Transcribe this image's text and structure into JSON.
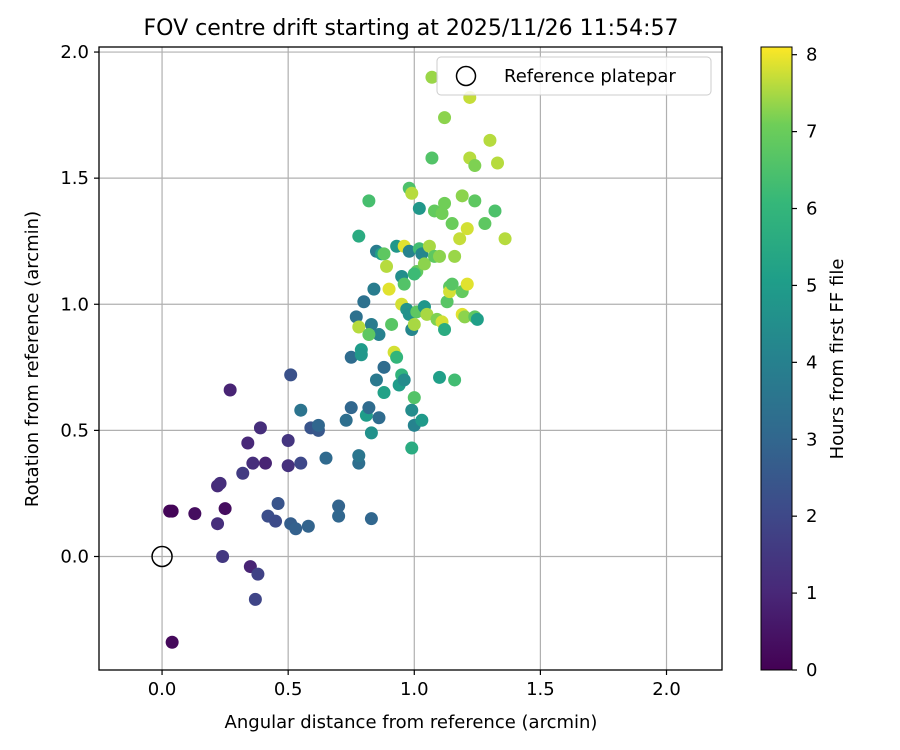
{
  "chart_data": {
    "type": "scatter",
    "title": "FOV centre drift starting at 2025/11/26 11:54:57",
    "xlabel": "Angular distance from reference (arcmin)",
    "ylabel": "Rotation from reference (arcmin)",
    "xlim": [
      -0.25,
      2.22
    ],
    "ylim": [
      -0.45,
      2.02
    ],
    "xticks": [
      0.0,
      0.5,
      1.0,
      1.5,
      2.0
    ],
    "xtick_labels": [
      "0.0",
      "0.5",
      "1.0",
      "1.5",
      "2.0"
    ],
    "yticks": [
      0.0,
      0.5,
      1.0,
      1.5,
      2.0
    ],
    "ytick_labels": [
      "0.0",
      "0.5",
      "1.0",
      "1.5",
      "2.0"
    ],
    "grid": true,
    "legend": {
      "position": "top-right",
      "entries": [
        "Reference platepar"
      ]
    },
    "reference_point": {
      "x": 0.0,
      "y": 0.0,
      "label": "Reference platepar"
    },
    "colorbar": {
      "label": "Hours from first FF file",
      "colormap": "viridis",
      "range": [
        0,
        8.1
      ],
      "ticks": [
        0,
        1,
        2,
        3,
        4,
        5,
        6,
        7,
        8
      ],
      "tick_labels": [
        "0",
        "1",
        "2",
        "3",
        "4",
        "5",
        "6",
        "7",
        "8"
      ]
    },
    "points": [
      {
        "x": 0.04,
        "y": 0.18,
        "c": 0.1
      },
      {
        "x": 0.03,
        "y": 0.18,
        "c": 0.1
      },
      {
        "x": 0.04,
        "y": -0.34,
        "c": 0.2
      },
      {
        "x": 0.13,
        "y": 0.17,
        "c": 0.3
      },
      {
        "x": 0.25,
        "y": 0.19,
        "c": 0.3
      },
      {
        "x": 0.22,
        "y": 0.13,
        "c": 1.2
      },
      {
        "x": 0.22,
        "y": 0.28,
        "c": 1.1
      },
      {
        "x": 0.23,
        "y": 0.29,
        "c": 1.2
      },
      {
        "x": 0.24,
        "y": 0.0,
        "c": 1.5
      },
      {
        "x": 0.27,
        "y": 0.66,
        "c": 0.9
      },
      {
        "x": 0.32,
        "y": 0.33,
        "c": 1.6
      },
      {
        "x": 0.34,
        "y": 0.45,
        "c": 1.0
      },
      {
        "x": 0.35,
        "y": -0.04,
        "c": 0.9
      },
      {
        "x": 0.36,
        "y": 0.37,
        "c": 1.2
      },
      {
        "x": 0.37,
        "y": -0.17,
        "c": 1.9
      },
      {
        "x": 0.38,
        "y": -0.07,
        "c": 1.8
      },
      {
        "x": 0.39,
        "y": 0.51,
        "c": 1.2
      },
      {
        "x": 0.41,
        "y": 0.37,
        "c": 0.9
      },
      {
        "x": 0.42,
        "y": 0.16,
        "c": 2.2
      },
      {
        "x": 0.45,
        "y": 0.14,
        "c": 2.1
      },
      {
        "x": 0.46,
        "y": 0.21,
        "c": 2.4
      },
      {
        "x": 0.5,
        "y": 0.46,
        "c": 1.4
      },
      {
        "x": 0.5,
        "y": 0.36,
        "c": 1.3
      },
      {
        "x": 0.51,
        "y": 0.13,
        "c": 2.7
      },
      {
        "x": 0.51,
        "y": 0.72,
        "c": 2.3
      },
      {
        "x": 0.53,
        "y": 0.11,
        "c": 2.8
      },
      {
        "x": 0.55,
        "y": 0.58,
        "c": 3.5
      },
      {
        "x": 0.55,
        "y": 0.37,
        "c": 2.0
      },
      {
        "x": 0.58,
        "y": 0.12,
        "c": 2.9
      },
      {
        "x": 0.59,
        "y": 0.51,
        "c": 2.4
      },
      {
        "x": 0.62,
        "y": 0.5,
        "c": 2.5
      },
      {
        "x": 0.62,
        "y": 0.52,
        "c": 3.0
      },
      {
        "x": 0.65,
        "y": 0.39,
        "c": 3.1
      },
      {
        "x": 0.7,
        "y": 0.2,
        "c": 2.9
      },
      {
        "x": 0.7,
        "y": 0.16,
        "c": 3.0
      },
      {
        "x": 0.73,
        "y": 0.54,
        "c": 3.3
      },
      {
        "x": 0.75,
        "y": 0.59,
        "c": 3.0
      },
      {
        "x": 0.75,
        "y": 0.79,
        "c": 3.2
      },
      {
        "x": 0.77,
        "y": 0.95,
        "c": 3.4
      },
      {
        "x": 0.78,
        "y": 0.37,
        "c": 3.3
      },
      {
        "x": 0.78,
        "y": 0.4,
        "c": 3.6
      },
      {
        "x": 0.79,
        "y": 0.82,
        "c": 5.0
      },
      {
        "x": 0.79,
        "y": 0.8,
        "c": 4.8
      },
      {
        "x": 0.8,
        "y": 1.01,
        "c": 3.4
      },
      {
        "x": 0.81,
        "y": 0.56,
        "c": 5.0
      },
      {
        "x": 0.82,
        "y": 0.59,
        "c": 3.2
      },
      {
        "x": 0.83,
        "y": 0.92,
        "c": 3.8
      },
      {
        "x": 0.83,
        "y": 0.49,
        "c": 4.6
      },
      {
        "x": 0.83,
        "y": 0.15,
        "c": 3.0
      },
      {
        "x": 0.84,
        "y": 1.06,
        "c": 3.8
      },
      {
        "x": 0.85,
        "y": 0.7,
        "c": 3.7
      },
      {
        "x": 0.86,
        "y": 0.55,
        "c": 3.2
      },
      {
        "x": 0.86,
        "y": 0.88,
        "c": 4.0
      },
      {
        "x": 0.78,
        "y": 1.27,
        "c": 5.6
      },
      {
        "x": 0.78,
        "y": 0.91,
        "c": 7.6
      },
      {
        "x": 0.82,
        "y": 1.41,
        "c": 6.4
      },
      {
        "x": 0.82,
        "y": 0.88,
        "c": 6.8
      },
      {
        "x": 0.85,
        "y": 1.21,
        "c": 3.8
      },
      {
        "x": 0.87,
        "y": 1.2,
        "c": 5.1
      },
      {
        "x": 0.88,
        "y": 1.2,
        "c": 6.8
      },
      {
        "x": 0.88,
        "y": 0.65,
        "c": 5.2
      },
      {
        "x": 0.88,
        "y": 0.75,
        "c": 3.2
      },
      {
        "x": 0.89,
        "y": 1.15,
        "c": 7.6
      },
      {
        "x": 0.91,
        "y": 0.92,
        "c": 6.7
      },
      {
        "x": 0.92,
        "y": 0.81,
        "c": 7.8
      },
      {
        "x": 0.93,
        "y": 0.79,
        "c": 6.0
      },
      {
        "x": 0.93,
        "y": 1.23,
        "c": 4.8
      },
      {
        "x": 0.94,
        "y": 0.68,
        "c": 5.0
      },
      {
        "x": 0.95,
        "y": 0.72,
        "c": 5.9
      },
      {
        "x": 0.95,
        "y": 1.0,
        "c": 7.8
      },
      {
        "x": 0.95,
        "y": 1.11,
        "c": 4.5
      },
      {
        "x": 0.96,
        "y": 1.08,
        "c": 6.6
      },
      {
        "x": 0.96,
        "y": 0.7,
        "c": 4.4
      },
      {
        "x": 0.96,
        "y": 1.23,
        "c": 7.9
      },
      {
        "x": 0.97,
        "y": 0.98,
        "c": 4.7
      },
      {
        "x": 0.98,
        "y": 1.46,
        "c": 6.5
      },
      {
        "x": 0.98,
        "y": 1.21,
        "c": 4.1
      },
      {
        "x": 0.98,
        "y": 0.96,
        "c": 4.6
      },
      {
        "x": 0.99,
        "y": 1.44,
        "c": 7.6
      },
      {
        "x": 0.99,
        "y": 0.58,
        "c": 4.4
      },
      {
        "x": 0.99,
        "y": 0.9,
        "c": 4.2
      },
      {
        "x": 0.99,
        "y": 0.43,
        "c": 5.6
      },
      {
        "x": 1.0,
        "y": 0.63,
        "c": 6.6
      },
      {
        "x": 1.0,
        "y": 0.52,
        "c": 4.1
      },
      {
        "x": 1.0,
        "y": 0.92,
        "c": 7.5
      },
      {
        "x": 1.01,
        "y": 0.97,
        "c": 6.8
      },
      {
        "x": 1.01,
        "y": 1.13,
        "c": 6.9
      },
      {
        "x": 1.02,
        "y": 1.38,
        "c": 4.8
      },
      {
        "x": 1.02,
        "y": 1.22,
        "c": 6.3
      },
      {
        "x": 1.03,
        "y": 1.2,
        "c": 4.2
      },
      {
        "x": 1.03,
        "y": 0.54,
        "c": 4.9
      },
      {
        "x": 1.04,
        "y": 1.16,
        "c": 7.3
      },
      {
        "x": 1.04,
        "y": 0.99,
        "c": 5.3
      },
      {
        "x": 1.04,
        "y": 0.99,
        "c": 4.8
      },
      {
        "x": 1.05,
        "y": 0.96,
        "c": 7.5
      },
      {
        "x": 1.06,
        "y": 1.23,
        "c": 7.5
      },
      {
        "x": 1.07,
        "y": 1.9,
        "c": 7.4
      },
      {
        "x": 1.07,
        "y": 1.58,
        "c": 6.6
      },
      {
        "x": 1.08,
        "y": 1.19,
        "c": 6.8
      },
      {
        "x": 1.08,
        "y": 1.37,
        "c": 6.9
      },
      {
        "x": 1.09,
        "y": 0.94,
        "c": 7.2
      },
      {
        "x": 1.1,
        "y": 1.19,
        "c": 7.3
      },
      {
        "x": 1.1,
        "y": 0.71,
        "c": 5.1
      },
      {
        "x": 1.11,
        "y": 0.93,
        "c": 7.8
      },
      {
        "x": 1.11,
        "y": 1.36,
        "c": 7.1
      },
      {
        "x": 1.12,
        "y": 1.74,
        "c": 7.3
      },
      {
        "x": 1.12,
        "y": 0.9,
        "c": 5.6
      },
      {
        "x": 1.12,
        "y": 1.4,
        "c": 7.1
      },
      {
        "x": 1.13,
        "y": 1.01,
        "c": 6.7
      },
      {
        "x": 1.14,
        "y": 1.07,
        "c": 6.8
      },
      {
        "x": 1.14,
        "y": 1.05,
        "c": 7.8
      },
      {
        "x": 1.15,
        "y": 1.32,
        "c": 7.0
      },
      {
        "x": 1.15,
        "y": 1.08,
        "c": 6.7
      },
      {
        "x": 1.16,
        "y": 1.19,
        "c": 7.4
      },
      {
        "x": 1.16,
        "y": 0.7,
        "c": 6.3
      },
      {
        "x": 1.18,
        "y": 1.26,
        "c": 7.7
      },
      {
        "x": 1.19,
        "y": 1.43,
        "c": 7.3
      },
      {
        "x": 1.19,
        "y": 1.05,
        "c": 6.9
      },
      {
        "x": 1.19,
        "y": 0.96,
        "c": 7.9
      },
      {
        "x": 1.2,
        "y": 0.95,
        "c": 7.3
      },
      {
        "x": 1.21,
        "y": 1.3,
        "c": 7.8
      },
      {
        "x": 1.21,
        "y": 1.08,
        "c": 7.9
      },
      {
        "x": 1.22,
        "y": 1.82,
        "c": 7.7
      },
      {
        "x": 1.22,
        "y": 1.58,
        "c": 7.6
      },
      {
        "x": 1.24,
        "y": 1.55,
        "c": 7.2
      },
      {
        "x": 1.24,
        "y": 1.41,
        "c": 6.8
      },
      {
        "x": 1.24,
        "y": 0.95,
        "c": 6.8
      },
      {
        "x": 1.25,
        "y": 0.94,
        "c": 5.1
      },
      {
        "x": 1.28,
        "y": 1.32,
        "c": 6.8
      },
      {
        "x": 1.3,
        "y": 1.65,
        "c": 7.6
      },
      {
        "x": 1.32,
        "y": 1.37,
        "c": 6.5
      },
      {
        "x": 1.33,
        "y": 1.56,
        "c": 7.6
      },
      {
        "x": 1.36,
        "y": 1.26,
        "c": 7.6
      },
      {
        "x": 0.9,
        "y": 1.06,
        "c": 7.9
      },
      {
        "x": 1.0,
        "y": 1.12,
        "c": 6.2
      }
    ]
  }
}
